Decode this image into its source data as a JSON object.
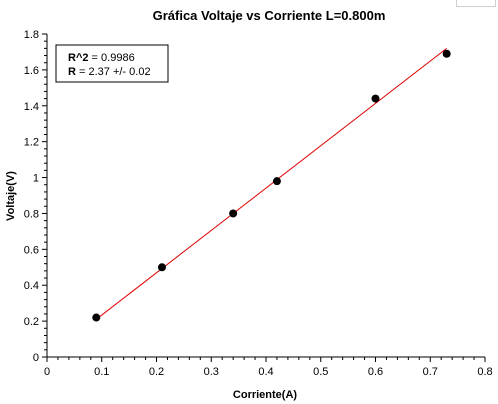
{
  "chart_data": {
    "type": "scatter",
    "title": "Gráfica Voltaje vs Corriente L=0.800m",
    "xlabel": "Corriente(A)",
    "ylabel": "Voltaje(V)",
    "xlim": [
      0,
      0.8
    ],
    "ylim": [
      0,
      1.8
    ],
    "x_ticks": [
      "0",
      "0.1",
      "0.2",
      "0.3",
      "0.4",
      "0.5",
      "0.6",
      "0.7",
      "0.8"
    ],
    "y_ticks": [
      "0",
      "0.2",
      "0.4",
      "0.6",
      "0.8",
      "1",
      "1.2",
      "1.4",
      "1.6",
      "1.8"
    ],
    "grid": false,
    "series": [
      {
        "x": [
          0.09,
          0.21,
          0.34,
          0.42,
          0.6,
          0.73
        ],
        "y": [
          0.22,
          0.5,
          0.8,
          0.98,
          1.44,
          1.69
        ],
        "marker_color": "#000000"
      }
    ],
    "fit": {
      "type": "line",
      "x_range": [
        0.09,
        0.73
      ],
      "y_range": [
        0.21,
        1.72
      ],
      "color": "#dd0000"
    },
    "annotation": {
      "r2_label": "R^2",
      "r2_value": " = 0.9986",
      "r_label": "R",
      "r_value": " = 2.37 +/- 0.02",
      "placement": "top-left"
    }
  }
}
